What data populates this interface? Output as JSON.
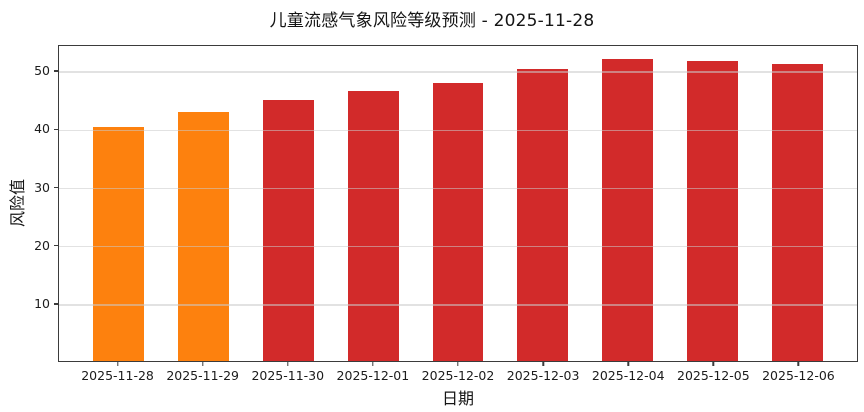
{
  "chart_data": {
    "type": "bar",
    "title": "儿童流感气象风险等级预测 - 2025-11-28",
    "xlabel": "日期",
    "ylabel": "风险值",
    "categories": [
      "2025-11-28",
      "2025-11-29",
      "2025-11-30",
      "2025-12-01",
      "2025-12-02",
      "2025-12-03",
      "2025-12-04",
      "2025-12-05",
      "2025-12-06"
    ],
    "values": [
      40.5,
      43.0,
      45.2,
      46.8,
      48.1,
      50.5,
      52.2,
      51.9,
      51.4
    ],
    "bar_colors": [
      "#fd810e",
      "#fd810e",
      "#d22a2a",
      "#d22a2a",
      "#d22a2a",
      "#d22a2a",
      "#d22a2a",
      "#d22a2a",
      "#d22a2a"
    ],
    "colors": {
      "orange": "#fd810e",
      "red": "#d22a2a"
    },
    "yticks": [
      10,
      20,
      30,
      40,
      50
    ],
    "ylim": [
      0,
      54.5
    ],
    "grid": true,
    "grid_over_bars": true,
    "legend": "none",
    "bar_width_fraction": 0.6
  }
}
